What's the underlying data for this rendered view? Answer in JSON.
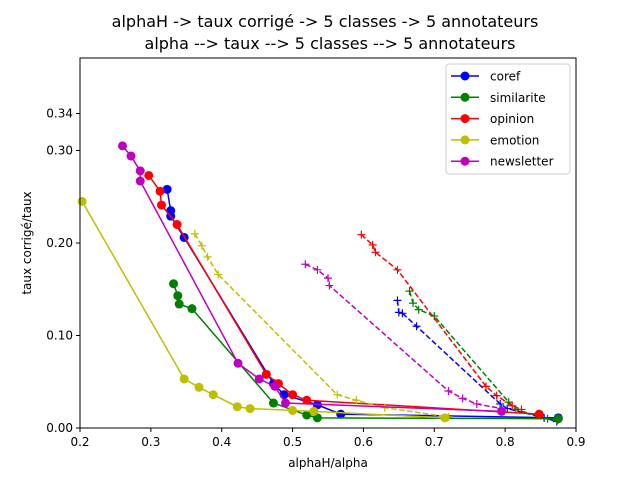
{
  "chart_data": {
    "type": "line",
    "title": [
      "alphaH -> taux corrigé -> 5 classes -> 5 annotateurs",
      "alpha --> taux --> 5 classes --> 5 annotateurs"
    ],
    "xlabel": "alphaH/alpha",
    "ylabel": "taux corrigé/taux",
    "xlim": [
      0.2,
      0.9
    ],
    "ylim": [
      0.0,
      0.4
    ],
    "xticks": [
      "0.2",
      "0.3",
      "0.4",
      "0.5",
      "0.6",
      "0.7",
      "0.8",
      "0.9"
    ],
    "yticks": [
      {
        "value": 0.0,
        "label": "0.00"
      },
      {
        "value": 0.1,
        "label": "0.10"
      },
      {
        "value": 0.2,
        "label": "0.20"
      },
      {
        "value": 0.3,
        "label": "0.30"
      },
      {
        "value": 0.34,
        "label": "0.34"
      }
    ],
    "grid": false,
    "legend_position": "top-right",
    "series": [
      {
        "name": "coref",
        "color": "#0000ff",
        "solid": [
          [
            0.323,
            0.258
          ],
          [
            0.328,
            0.235
          ],
          [
            0.328,
            0.229
          ],
          [
            0.347,
            0.206
          ],
          [
            0.473,
            0.048
          ],
          [
            0.488,
            0.036
          ],
          [
            0.535,
            0.025
          ],
          [
            0.568,
            0.015
          ],
          [
            0.875,
            0.011
          ]
        ],
        "dashed": [
          [
            0.648,
            0.138
          ],
          [
            0.65,
            0.125
          ],
          [
            0.655,
            0.124
          ],
          [
            0.675,
            0.11
          ],
          [
            0.793,
            0.026
          ],
          [
            0.803,
            0.021
          ],
          [
            0.855,
            0.011
          ],
          [
            0.873,
            0.007
          ]
        ]
      },
      {
        "name": "similarite",
        "color": "#008000",
        "solid": [
          [
            0.332,
            0.156
          ],
          [
            0.338,
            0.143
          ],
          [
            0.34,
            0.134
          ],
          [
            0.358,
            0.129
          ],
          [
            0.473,
            0.027
          ],
          [
            0.52,
            0.014
          ],
          [
            0.535,
            0.011
          ],
          [
            0.875,
            0.01
          ]
        ],
        "dashed": [
          [
            0.665,
            0.148
          ],
          [
            0.67,
            0.135
          ],
          [
            0.678,
            0.128
          ],
          [
            0.7,
            0.121
          ],
          [
            0.805,
            0.028
          ],
          [
            0.815,
            0.02
          ],
          [
            0.86,
            0.01
          ],
          [
            0.875,
            0.009
          ]
        ]
      },
      {
        "name": "opinion",
        "color": "#ff0000",
        "solid": [
          [
            0.297,
            0.273
          ],
          [
            0.313,
            0.256
          ],
          [
            0.315,
            0.241
          ],
          [
            0.337,
            0.22
          ],
          [
            0.463,
            0.058
          ],
          [
            0.48,
            0.048
          ],
          [
            0.5,
            0.036
          ],
          [
            0.52,
            0.03
          ],
          [
            0.848,
            0.015
          ]
        ],
        "dashed": [
          [
            0.597,
            0.209
          ],
          [
            0.613,
            0.198
          ],
          [
            0.617,
            0.19
          ],
          [
            0.648,
            0.171
          ],
          [
            0.773,
            0.045
          ],
          [
            0.788,
            0.035
          ],
          [
            0.81,
            0.024
          ],
          [
            0.823,
            0.02
          ]
        ]
      },
      {
        "name": "emotion",
        "color": "#bfbf00",
        "solid": [
          [
            0.203,
            0.245
          ],
          [
            0.347,
            0.053
          ],
          [
            0.368,
            0.044
          ],
          [
            0.388,
            0.036
          ],
          [
            0.422,
            0.023
          ],
          [
            0.44,
            0.021
          ],
          [
            0.5,
            0.019
          ],
          [
            0.53,
            0.018
          ],
          [
            0.715,
            0.011
          ]
        ],
        "dashed": [
          [
            0.362,
            0.21
          ],
          [
            0.372,
            0.197
          ],
          [
            0.38,
            0.185
          ],
          [
            0.395,
            0.166
          ],
          [
            0.563,
            0.036
          ],
          [
            0.59,
            0.03
          ],
          [
            0.63,
            0.022
          ],
          [
            0.72,
            0.012
          ]
        ]
      },
      {
        "name": "newsletter",
        "color": "#bf00bf",
        "solid": [
          [
            0.26,
            0.305
          ],
          [
            0.272,
            0.294
          ],
          [
            0.285,
            0.278
          ],
          [
            0.285,
            0.267
          ],
          [
            0.423,
            0.07
          ],
          [
            0.453,
            0.053
          ],
          [
            0.475,
            0.045
          ],
          [
            0.49,
            0.027
          ],
          [
            0.795,
            0.018
          ]
        ],
        "dashed": [
          [
            0.518,
            0.177
          ],
          [
            0.535,
            0.171
          ],
          [
            0.55,
            0.162
          ],
          [
            0.552,
            0.154
          ],
          [
            0.72,
            0.04
          ],
          [
            0.74,
            0.032
          ],
          [
            0.76,
            0.026
          ],
          [
            0.795,
            0.021
          ]
        ]
      }
    ]
  }
}
